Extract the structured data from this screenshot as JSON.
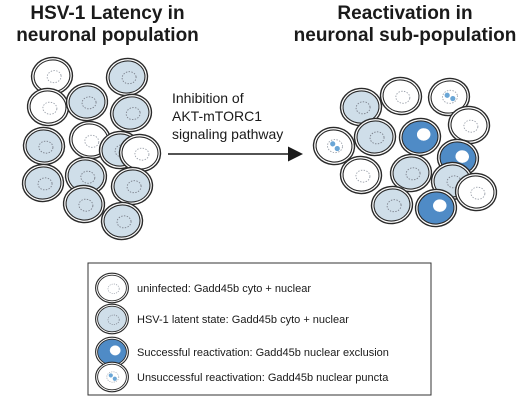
{
  "titles": {
    "left": [
      "HSV-1 Latency in",
      "neuronal population"
    ],
    "right": [
      "Reactivation in",
      "neuronal sub-population"
    ]
  },
  "arrow_label": [
    "Inhibition of",
    "AKT-mTORC1",
    "signaling pathway"
  ],
  "colors": {
    "uninfected_fill": "#ffffff",
    "latent_fill": "#cfdee9",
    "reactivated_fill": "#4f8bc6",
    "puncta": "#6aa6d6",
    "outline": "#2a2a2a",
    "latent_nucleus": "#7a7f8a"
  },
  "legend": [
    {
      "state": "uninfected",
      "label": "uninfected: Gadd45b cyto + nuclear"
    },
    {
      "state": "latent",
      "label": "HSV-1 latent state: Gadd45b cyto + nuclear"
    },
    {
      "state": "reactivated",
      "label": "Successful reactivation: Gadd45b nuclear exclusion"
    },
    {
      "state": "puncta",
      "label": "Unsuccessful reactivation: Gadd45b nuclear puncta"
    }
  ]
}
